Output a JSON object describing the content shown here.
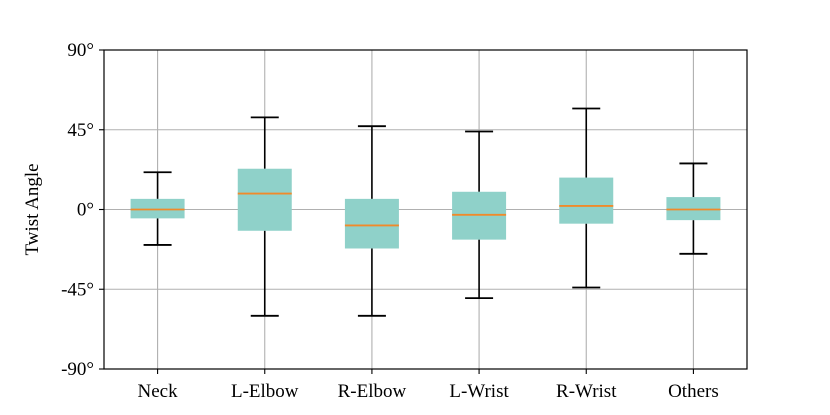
{
  "chart_data": {
    "type": "box",
    "title": "",
    "xlabel": "",
    "ylabel": "Twist Angle",
    "ylim": [
      -90,
      90
    ],
    "yticks": [
      -90,
      -45,
      0,
      45,
      90
    ],
    "ytick_labels": [
      "-90°",
      "-45°",
      "0°",
      "45°",
      "90°"
    ],
    "grid": true,
    "categories": [
      "Neck",
      "L-Elbow",
      "R-Elbow",
      "L-Wrist",
      "R-Wrist",
      "Others"
    ],
    "boxes": [
      {
        "whisker_low": -20,
        "q1": -5,
        "median": 0,
        "q3": 6,
        "whisker_high": 21
      },
      {
        "whisker_low": -60,
        "q1": -12,
        "median": 9,
        "q3": 23,
        "whisker_high": 52
      },
      {
        "whisker_low": -60,
        "q1": -22,
        "median": -9,
        "q3": 6,
        "whisker_high": 47
      },
      {
        "whisker_low": -50,
        "q1": -17,
        "median": -3,
        "q3": 10,
        "whisker_high": 44
      },
      {
        "whisker_low": -44,
        "q1": -8,
        "median": 2,
        "q3": 18,
        "whisker_high": 57
      },
      {
        "whisker_low": -25,
        "q1": -6,
        "median": 0,
        "q3": 7,
        "whisker_high": 26
      }
    ],
    "colors": {
      "box_fill": "#8fd1c9",
      "median": "#f08a2a",
      "whisker": "#000000",
      "grid": "#b0b0b0",
      "axis": "#000000"
    }
  }
}
